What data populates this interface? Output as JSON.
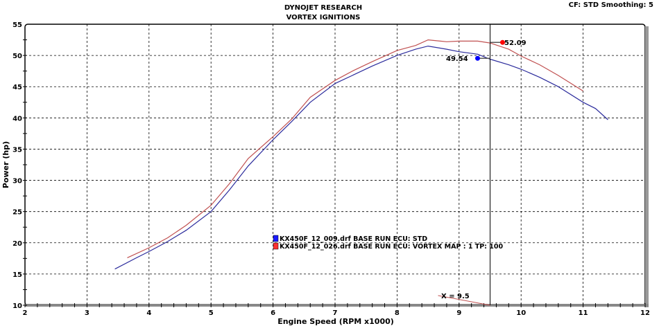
{
  "chart_data": {
    "type": "line",
    "title": "DYNOJET RESEARCH",
    "subtitle": "VORTEX IGNITIONS",
    "info": "CF: STD  Smoothing: 5",
    "xlabel": "Engine Speed (RPM x1000)",
    "ylabel": "Power (hp)",
    "xlim": [
      2,
      12
    ],
    "ylim": [
      10,
      55
    ],
    "xticks": [
      2,
      3,
      4,
      5,
      6,
      7,
      8,
      9,
      10,
      11,
      12
    ],
    "yticks": [
      10,
      15,
      20,
      25,
      30,
      35,
      40,
      45,
      50,
      55
    ],
    "grid": true,
    "legend_placement": "center",
    "cursor": {
      "x": 9.5,
      "label": "X = 9.5"
    },
    "series": [
      {
        "name": "KX450F_12_009.drf BASE RUN ECU: STD",
        "color": "#2b2b9c",
        "legend_color": "#1a1aff",
        "marker_color": "#0000ff",
        "cursor_value": "49.54",
        "x": [
          3.45,
          3.8,
          4,
          4.3,
          4.6,
          5,
          5.3,
          5.6,
          6,
          6.3,
          6.6,
          7,
          7.3,
          7.6,
          8,
          8.3,
          8.5,
          8.8,
          9,
          9.3,
          9.5,
          9.8,
          10,
          10.3,
          10.6,
          11,
          11.2,
          11.4
        ],
        "y": [
          15.8,
          17.6,
          18.6,
          20.2,
          22,
          25,
          28.5,
          32.3,
          36.5,
          39.4,
          42.5,
          45.5,
          46.9,
          48.3,
          50,
          51,
          51.5,
          51,
          50.6,
          50.2,
          49.4,
          48.5,
          47.8,
          46.5,
          45,
          42.5,
          41.5,
          39.7
        ]
      },
      {
        "name": "KX450F_12_026.drf BASE RUN ECU: VORTEX MAP : 1 TP: 100",
        "color": "#c05050",
        "legend_color": "#ff3030",
        "marker_color": "#ff0000",
        "cursor_value": "52.09",
        "x": [
          3.65,
          4,
          4.3,
          4.6,
          5,
          5.3,
          5.6,
          6,
          6.3,
          6.6,
          7,
          7.3,
          7.6,
          8,
          8.3,
          8.5,
          8.8,
          9,
          9.3,
          9.5,
          9.8,
          10,
          10.3,
          10.6,
          11
        ],
        "y": [
          17.6,
          19.2,
          20.8,
          22.8,
          26,
          29.5,
          33.5,
          37,
          39.8,
          43.3,
          46,
          47.6,
          49,
          50.8,
          51.6,
          52.5,
          52.2,
          52.3,
          52.3,
          52,
          51,
          49.9,
          48.5,
          46.8,
          44.3
        ]
      }
    ]
  }
}
